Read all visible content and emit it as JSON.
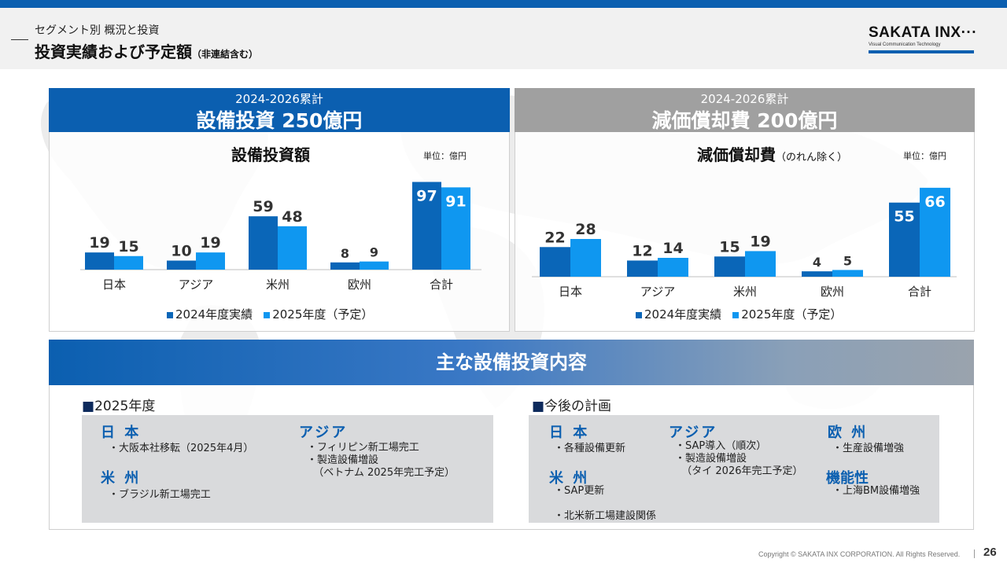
{
  "header": {
    "subtitle": "セグメント別 概況と投資",
    "title": "投資実績および予定額",
    "title_note": "（非連結含む）",
    "logo": "SAKATA INX···",
    "logo_tagline": "Visual Communication Technology"
  },
  "colors": {
    "series_2024": "#0a66b8",
    "series_2025": "#0f97f0",
    "capex_head": "#0b5fb0",
    "dep_head": "#a0a0a0"
  },
  "capex_panel": {
    "head_sub": "2024-2026累計",
    "head_main": "設備投資 250億円",
    "chart_title": "設備投資額",
    "unit": "単位：億円"
  },
  "dep_panel": {
    "head_sub": "2024-2026累計",
    "head_main": "減価償却費 200億円",
    "chart_title": "減価償却費",
    "chart_title_note": "（のれん除く）",
    "unit": "単位：億円"
  },
  "chart_data": [
    {
      "type": "bar",
      "title": "設備投資額",
      "categories": [
        "日本",
        "アジア",
        "米州",
        "欧州",
        "合計"
      ],
      "series": [
        {
          "name": "2024年度実績",
          "values": [
            19,
            10,
            59,
            8,
            97
          ]
        },
        {
          "name": "2025年度（予定）",
          "values": [
            15,
            19,
            48,
            9,
            91
          ]
        }
      ],
      "ylim": [
        0,
        100
      ],
      "grid": false,
      "legend": "bottom"
    },
    {
      "type": "bar",
      "title": "減価償却費",
      "categories": [
        "日本",
        "アジア",
        "米州",
        "欧州",
        "合計"
      ],
      "series": [
        {
          "name": "2024年度実績",
          "values": [
            22,
            12,
            15,
            4,
            55
          ]
        },
        {
          "name": "2025年度（予定）",
          "values": [
            28,
            14,
            19,
            5,
            66
          ]
        }
      ],
      "ylim": [
        0,
        70
      ],
      "grid": false,
      "legend": "bottom"
    }
  ],
  "main_investments": {
    "title": "主な設備投資内容",
    "fy2025": {
      "heading_mark": "■",
      "heading": "2025年度",
      "japan": {
        "label": "日 本",
        "items": "・大阪本社移転（2025年4月）"
      },
      "americas": {
        "label": "米 州",
        "items": "・ブラジル新工場完工"
      },
      "asia": {
        "label": "アジア",
        "items": "・フィリピン新工場完工\n・製造設備増設\n  （ベトナム 2025年完工予定）"
      }
    },
    "future": {
      "heading_mark": "■",
      "heading": "今後の計画",
      "japan": {
        "label": "日 本",
        "items": "・各種設備更新"
      },
      "americas": {
        "label": "米 州",
        "items": "・SAP更新\n\n・北米新工場建設関係"
      },
      "asia": {
        "label": "アジア",
        "items": "・SAP導入（順次）\n・製造設備増設\n  （タイ 2026年完工予定）"
      },
      "europe": {
        "label": "欧 州",
        "items": "・生産設備増強"
      },
      "functional": {
        "label": "機能性",
        "items": "・上海BM設備増強"
      }
    }
  },
  "footer": {
    "copyright": "Copyright © SAKATA INX CORPORATION. All Rights Reserved.",
    "page": "26"
  }
}
